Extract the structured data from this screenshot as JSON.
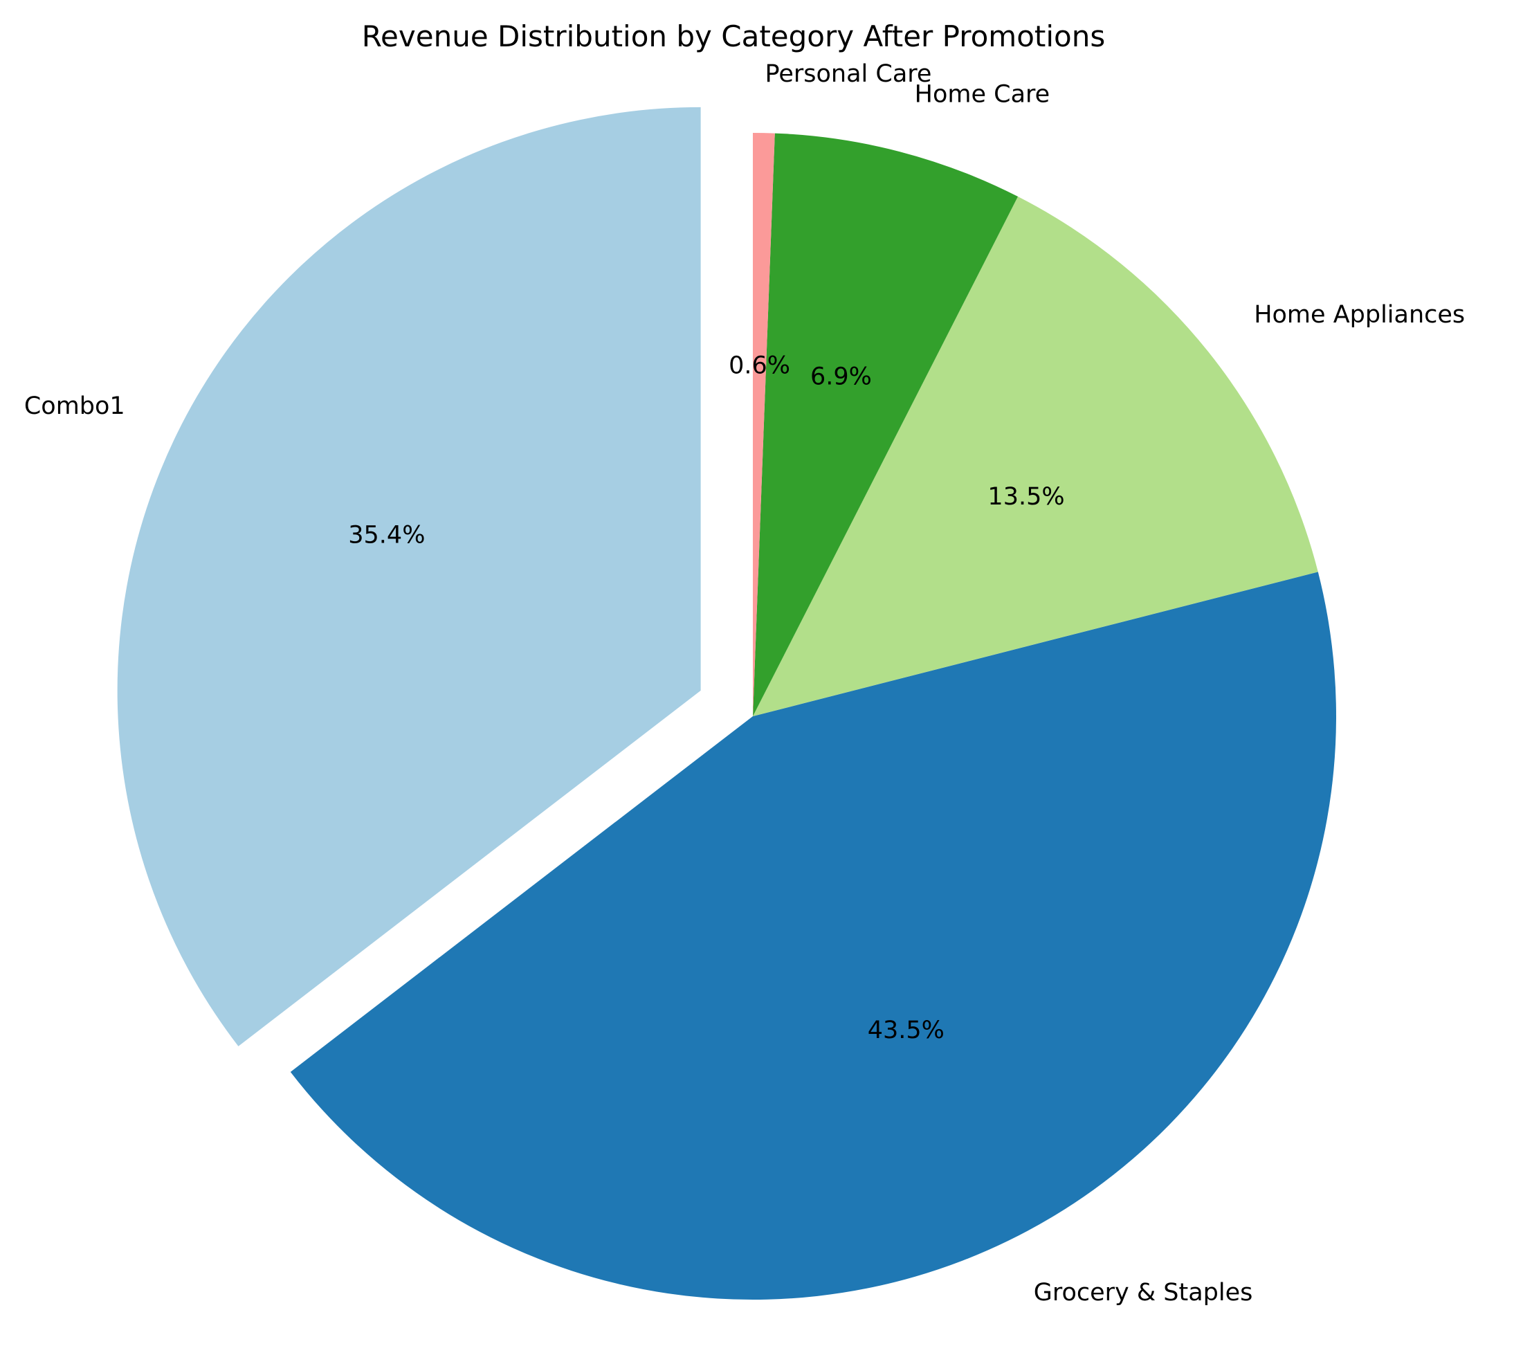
{
  "chart_data": {
    "type": "pie",
    "title": "Revenue Distribution by Category After Promotions",
    "slices": [
      {
        "label": "Combo1",
        "value": 35.4,
        "pct_label": "35.4%",
        "color": "#a6cee3",
        "exploded": true
      },
      {
        "label": "Grocery & Staples",
        "value": 43.5,
        "pct_label": "43.5%",
        "color": "#1f78b4",
        "exploded": false
      },
      {
        "label": "Home Appliances",
        "value": 13.5,
        "pct_label": "13.5%",
        "color": "#b2df8a",
        "exploded": false
      },
      {
        "label": "Home Care",
        "value": 6.9,
        "pct_label": "6.9%",
        "color": "#33a02c",
        "exploded": false
      },
      {
        "label": "Personal Care",
        "value": 0.6,
        "pct_label": "0.6%",
        "color": "#fb9a99",
        "exploded": false
      }
    ],
    "start_angle": 90,
    "direction": "counterclockwise"
  }
}
